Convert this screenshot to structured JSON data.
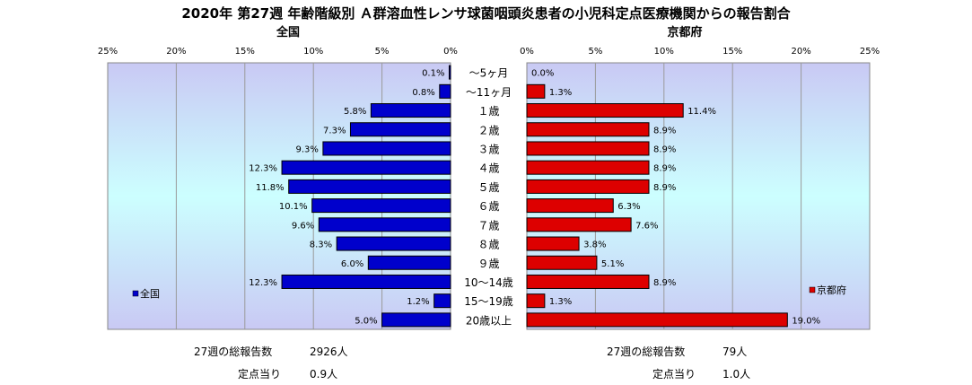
{
  "title": "2020年 第27週 年齢階級別 Ａ群溶血性レンサ球菌咽頭炎患者の小児科定点医療機関からの報告割合",
  "chart_data": {
    "type": "bar",
    "orientation": "horizontal",
    "layout": "back-to-back",
    "categories": [
      "～5ヶ月",
      "～11ヶ月",
      "１歳",
      "２歳",
      "３歳",
      "４歳",
      "５歳",
      "６歳",
      "７歳",
      "８歳",
      "９歳",
      "10～14歳",
      "15～19歳",
      "20歳以上"
    ],
    "xlim": [
      0,
      25
    ],
    "ticks": [
      "0%",
      "5%",
      "10%",
      "15%",
      "20%",
      "25%"
    ],
    "grid": true,
    "series": [
      {
        "name": "全国",
        "subtitle": "全国",
        "color": "#0000cc",
        "side": "left",
        "legend_position": "bottom-left",
        "values": [
          0.1,
          0.8,
          5.8,
          7.3,
          9.3,
          12.3,
          11.8,
          10.1,
          9.6,
          8.3,
          6.0,
          12.3,
          1.2,
          5.0
        ],
        "labels": [
          "0.1%",
          "0.8%",
          "5.8%",
          "7.3%",
          "9.3%",
          "12.3%",
          "11.8%",
          "10.1%",
          "9.6%",
          "8.3%",
          "6.0%",
          "12.3%",
          "1.2%",
          "5.0%"
        ]
      },
      {
        "name": "京都府",
        "subtitle": "京都府",
        "color": "#dd0000",
        "side": "right",
        "legend_position": "bottom-right",
        "values": [
          0.0,
          1.3,
          11.4,
          8.9,
          8.9,
          8.9,
          8.9,
          6.3,
          7.6,
          3.8,
          5.1,
          8.9,
          1.3,
          19.0
        ],
        "labels": [
          "0.0%",
          "1.3%",
          "11.4%",
          "8.9%",
          "8.9%",
          "8.9%",
          "8.9%",
          "6.3%",
          "7.6%",
          "3.8%",
          "5.1%",
          "8.9%",
          "1.3%",
          "19.0%"
        ]
      }
    ]
  },
  "footer": {
    "left": {
      "total_label": "27週の総報告数",
      "total_value": "2926人",
      "per_label": "定点当り",
      "per_value": "0.9人"
    },
    "right": {
      "total_label": "27週の総報告数",
      "total_value": "79人",
      "per_label": "定点当り",
      "per_value": "1.0人"
    }
  }
}
